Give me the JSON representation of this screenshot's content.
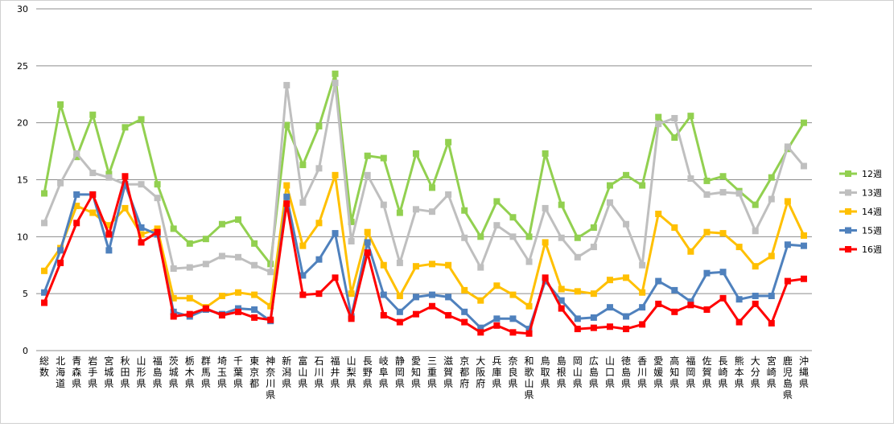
{
  "chart_data": {
    "type": "line",
    "title": "",
    "xlabel": "",
    "ylabel": "",
    "ylim": [
      0,
      30
    ],
    "yticks": [
      "0",
      "5",
      "10",
      "15",
      "20",
      "25",
      "30"
    ],
    "grid": true,
    "legend_position": "right",
    "categories": [
      "総数",
      "北海道",
      "青森県",
      "岩手県",
      "宮城県",
      "秋田県",
      "山形県",
      "福島県",
      "茨城県",
      "栃木県",
      "群馬県",
      "埼玉県",
      "千葉県",
      "東京都",
      "神奈川県",
      "新潟県",
      "富山県",
      "石川県",
      "福井県",
      "山梨県",
      "長野県",
      "岐阜県",
      "静岡県",
      "愛知県",
      "三重県",
      "滋賀県",
      "京都府",
      "大阪府",
      "兵庫県",
      "奈良県",
      "和歌山県",
      "鳥取県",
      "島根県",
      "岡山県",
      "広島県",
      "山口県",
      "徳島県",
      "香川県",
      "愛媛県",
      "高知県",
      "福岡県",
      "佐賀県",
      "長崎県",
      "熊本県",
      "大分県",
      "宮崎県",
      "鹿児島県",
      "沖縄県"
    ],
    "series": [
      {
        "name": "12週",
        "color": "#92d050",
        "marker": "square",
        "values": [
          13.8,
          21.6,
          17.0,
          20.7,
          15.5,
          19.6,
          20.3,
          14.6,
          10.7,
          9.4,
          9.8,
          11.1,
          11.5,
          9.4,
          7.6,
          19.8,
          16.3,
          19.7,
          24.3,
          11.3,
          17.1,
          16.9,
          12.1,
          17.3,
          14.3,
          18.3,
          12.3,
          10.0,
          13.1,
          11.7,
          10.0,
          17.3,
          12.8,
          9.9,
          10.8,
          14.5,
          15.4,
          14.5,
          20.5,
          18.7,
          20.6,
          14.9,
          15.3,
          14.0,
          12.8,
          15.2,
          17.7,
          20.0
        ]
      },
      {
        "name": "13週",
        "color": "#bfbfbf",
        "marker": "square",
        "values": [
          11.2,
          14.7,
          17.3,
          15.6,
          15.2,
          14.6,
          14.6,
          13.4,
          7.2,
          7.3,
          7.6,
          8.3,
          8.2,
          7.5,
          6.9,
          23.3,
          13.0,
          16.0,
          23.5,
          9.6,
          15.4,
          12.8,
          7.7,
          12.4,
          12.2,
          13.7,
          9.9,
          7.3,
          11.0,
          10.0,
          7.8,
          12.5,
          9.9,
          8.2,
          9.1,
          13.0,
          11.1,
          7.5,
          19.9,
          20.4,
          15.1,
          13.7,
          13.9,
          13.8,
          10.5,
          13.3,
          17.9,
          16.2
        ]
      },
      {
        "name": "14週",
        "color": "#ffc000",
        "marker": "square",
        "values": [
          7.0,
          9.0,
          12.7,
          12.1,
          11.0,
          12.5,
          10.2,
          10.7,
          4.6,
          4.6,
          3.8,
          4.8,
          5.1,
          4.9,
          3.9,
          14.5,
          9.2,
          11.2,
          15.4,
          5.0,
          10.4,
          7.5,
          4.8,
          7.4,
          7.6,
          7.5,
          5.3,
          4.4,
          5.7,
          4.9,
          3.9,
          9.5,
          5.4,
          5.2,
          5.0,
          6.2,
          6.4,
          5.1,
          12.0,
          10.8,
          8.7,
          10.4,
          10.3,
          9.1,
          7.4,
          8.3,
          13.1,
          10.1
        ]
      },
      {
        "name": "15週",
        "color": "#4f81bd",
        "marker": "square",
        "values": [
          5.1,
          8.8,
          13.7,
          13.7,
          8.8,
          14.6,
          10.8,
          10.2,
          3.4,
          3.0,
          3.6,
          3.2,
          3.7,
          3.6,
          2.6,
          13.5,
          6.6,
          8.0,
          10.3,
          3.0,
          9.5,
          4.9,
          3.4,
          4.7,
          4.9,
          4.7,
          3.4,
          2.0,
          2.8,
          2.8,
          1.9,
          6.1,
          4.4,
          2.8,
          2.9,
          3.8,
          3.0,
          3.8,
          6.1,
          5.3,
          4.3,
          6.8,
          6.9,
          4.5,
          4.8,
          4.8,
          9.3,
          9.2
        ]
      },
      {
        "name": "16週",
        "color": "#ff0000",
        "marker": "square",
        "values": [
          4.2,
          7.7,
          11.2,
          13.7,
          10.2,
          15.3,
          9.5,
          10.4,
          3.0,
          3.2,
          3.7,
          3.1,
          3.4,
          2.9,
          2.7,
          12.9,
          4.9,
          5.0,
          6.4,
          2.8,
          8.6,
          3.1,
          2.5,
          3.2,
          3.9,
          3.1,
          2.5,
          1.6,
          2.2,
          1.6,
          1.5,
          6.4,
          3.7,
          1.9,
          2.0,
          2.1,
          1.9,
          2.3,
          4.1,
          3.4,
          4.0,
          3.6,
          4.6,
          2.5,
          4.1,
          2.4,
          6.1,
          6.3
        ]
      }
    ]
  }
}
